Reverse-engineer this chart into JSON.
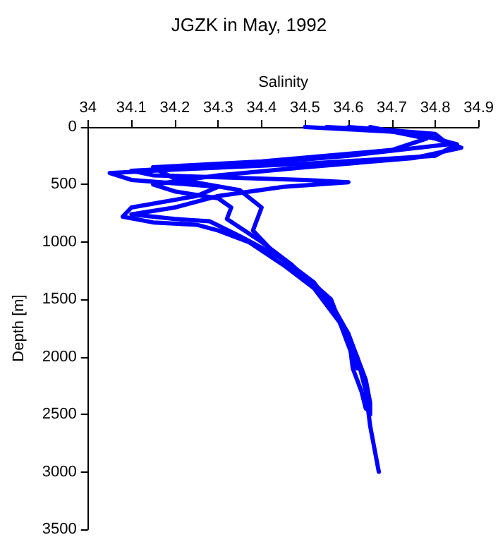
{
  "chart_data": {
    "type": "line",
    "title": "JGZK in May, 1992",
    "xlabel": "Salinity",
    "ylabel": "Depth [m]",
    "xlim": [
      34,
      34.9
    ],
    "xticks": [
      34,
      34.1,
      34.2,
      34.3,
      34.4,
      34.5,
      34.6,
      34.7,
      34.8,
      34.9
    ],
    "ylim": [
      3500,
      0
    ],
    "yticks": [
      0,
      500,
      1000,
      1500,
      2000,
      2500,
      3000,
      3500
    ],
    "series": [
      {
        "color": "#0000ff",
        "x": [
          34.5,
          34.6,
          34.75,
          34.85,
          34.8,
          34.5,
          34.2,
          34.05,
          34.1,
          34.3,
          34.25,
          34.1,
          34.08,
          34.15,
          34.25,
          34.3,
          34.37,
          34.45,
          34.52,
          34.58,
          34.62,
          34.64,
          34.65,
          34.66,
          34.67
        ],
        "values": [
          0,
          20,
          50,
          150,
          250,
          320,
          370,
          400,
          460,
          520,
          600,
          700,
          780,
          830,
          850,
          900,
          1000,
          1200,
          1400,
          1700,
          2000,
          2300,
          2600,
          2800,
          3000
        ]
      },
      {
        "color": "#0000ff",
        "x": [
          34.55,
          34.7,
          34.8,
          34.86,
          34.75,
          34.5,
          34.3,
          34.15,
          34.2,
          34.3,
          34.33,
          34.32,
          34.4,
          34.47,
          34.55,
          34.6,
          34.62,
          34.64,
          34.65,
          34.65
        ],
        "values": [
          0,
          30,
          100,
          180,
          270,
          350,
          420,
          500,
          560,
          620,
          700,
          800,
          1000,
          1200,
          1500,
          1800,
          2000,
          2200,
          2400,
          2500
        ]
      },
      {
        "color": "#0000ff",
        "x": [
          34.6,
          34.8,
          34.83,
          34.6,
          34.35,
          34.1,
          34.15,
          34.5,
          34.6,
          34.45,
          34.3,
          34.2,
          34.1,
          34.2,
          34.28,
          34.35,
          34.45,
          34.52,
          34.57,
          34.6,
          34.61,
          34.63,
          34.64
        ],
        "values": [
          0,
          60,
          150,
          250,
          330,
          380,
          420,
          460,
          480,
          520,
          600,
          700,
          760,
          800,
          820,
          950,
          1150,
          1350,
          1600,
          1800,
          2100,
          2300,
          2450
        ]
      },
      {
        "color": "#0000ff",
        "x": [
          34.65,
          34.78,
          34.7,
          34.4,
          34.15,
          34.2,
          34.35,
          34.4,
          34.38,
          34.43,
          34.5,
          34.56,
          34.6,
          34.62
        ],
        "values": [
          0,
          100,
          200,
          300,
          350,
          450,
          550,
          700,
          900,
          1100,
          1300,
          1500,
          1900,
          2100
        ]
      }
    ]
  }
}
